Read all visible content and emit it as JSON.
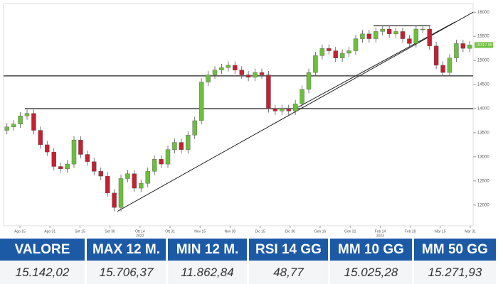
{
  "chart_data": {
    "type": "candlestick",
    "open": [
      13550,
      13620,
      13680,
      13850,
      13900,
      13550,
      13250,
      13100,
      12800,
      12750,
      12850,
      13350,
      13050,
      12900,
      12700,
      12600,
      12250,
      11950,
      12550,
      12650,
      12350,
      12450,
      12700,
      12950,
      12850,
      13150,
      13300,
      13150,
      13450,
      13750,
      14550,
      14700,
      14800,
      14850,
      14900,
      14800,
      14700,
      14650,
      14750,
      14700,
      14000,
      13950,
      14000,
      13950,
      14100,
      14400,
      14750,
      15100,
      15250,
      15200,
      15050,
      15150,
      15200,
      15450,
      15550,
      15450,
      15600,
      15650,
      15550,
      15600,
      15450,
      15350,
      15650,
      15650,
      15300,
      14900,
      14750,
      15050,
      15350,
      15250
    ],
    "close": [
      13620,
      13680,
      13850,
      13900,
      13550,
      13250,
      13100,
      12800,
      12750,
      12850,
      13350,
      13050,
      12900,
      12700,
      12600,
      12250,
      11950,
      12550,
      12650,
      12350,
      12450,
      12700,
      12950,
      12850,
      13150,
      13300,
      13150,
      13450,
      13750,
      14550,
      14700,
      14800,
      14850,
      14900,
      14800,
      14700,
      14650,
      14750,
      14700,
      14000,
      13950,
      14000,
      13950,
      14100,
      14400,
      14750,
      15100,
      15250,
      15200,
      15050,
      15150,
      15200,
      15450,
      15550,
      15450,
      15600,
      15650,
      15550,
      15600,
      15450,
      15350,
      15650,
      15650,
      15300,
      14900,
      14750,
      15050,
      15350,
      15250,
      15320
    ],
    "high": [
      13700,
      13760,
      13930,
      13980,
      13980,
      13630,
      13330,
      13180,
      12880,
      12930,
      13430,
      13430,
      13130,
      12980,
      12780,
      12680,
      12330,
      12630,
      12730,
      12730,
      12530,
      12780,
      13030,
      13030,
      13230,
      13380,
      13380,
      13530,
      13830,
      14630,
      14780,
      14880,
      14930,
      14980,
      14980,
      14880,
      14780,
      14830,
      14830,
      14780,
      14080,
      14080,
      14080,
      14180,
      14480,
      14830,
      15180,
      15330,
      15330,
      15280,
      15230,
      15280,
      15530,
      15630,
      15630,
      15680,
      15730,
      15730,
      15680,
      15680,
      15530,
      15730,
      15730,
      15730,
      15380,
      14980,
      15130,
      15430,
      15430,
      15400
    ],
    "low": [
      13470,
      13540,
      13600,
      13770,
      13470,
      13170,
      13020,
      12720,
      12670,
      12670,
      12770,
      12970,
      12820,
      12620,
      12520,
      12170,
      11870,
      11870,
      12470,
      12270,
      12270,
      12370,
      12620,
      12770,
      12770,
      13070,
      13070,
      13070,
      13370,
      13670,
      14470,
      14620,
      14720,
      14770,
      14720,
      14620,
      14570,
      14570,
      14620,
      13920,
      13870,
      13870,
      13870,
      13870,
      14020,
      14320,
      14670,
      15020,
      15120,
      14970,
      14970,
      15070,
      15120,
      15370,
      15370,
      15370,
      15520,
      15470,
      15470,
      15370,
      15270,
      15270,
      15570,
      15220,
      14820,
      14670,
      14670,
      14970,
      15170,
      15170
    ],
    "up_color": "#6cbf3c",
    "down_color": "#c42031",
    "date_labels": [
      "Ago 15",
      "Ago 31",
      "Set 15",
      "Set 30",
      "Ott 14",
      "Ott 31",
      "Nov 15",
      "Nov 30",
      "Dic 15",
      "Dic 30",
      "Gen 16",
      "Gen 31",
      "Feb 14",
      "Feb 28",
      "Mar 15",
      "Mar 31"
    ],
    "years": [
      "2022",
      "2023"
    ],
    "ylim": [
      11570,
      16180
    ],
    "yticks": [
      12000,
      12500,
      13000,
      13500,
      14000,
      14500,
      15000,
      15500,
      16000
    ],
    "levels": [
      14000,
      14680,
      15720
    ],
    "trendlines": [
      {
        "from": 11870,
        "to": 16000
      },
      {
        "from": 14000,
        "to": 15800
      }
    ],
    "last_price_label": "15317.99"
  },
  "table": {
    "headers": [
      "VALORE",
      "MAX 12 M.",
      "MIN 12 M.",
      "RSI 14 GG",
      "MM 10 GG",
      "MM 50 GG"
    ],
    "values": [
      "15.142,02",
      "15.706,37",
      "11.862,84",
      "48,77",
      "15.025,28",
      "15.271,93"
    ]
  }
}
